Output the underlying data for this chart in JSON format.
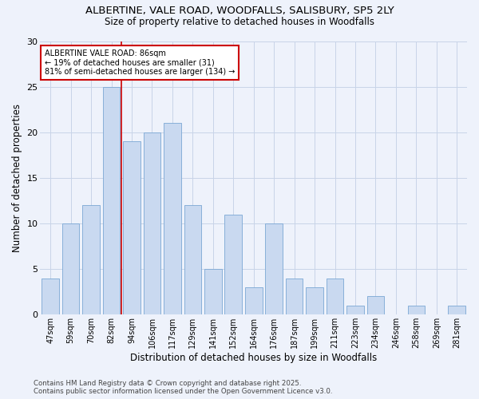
{
  "title_line1": "ALBERTINE, VALE ROAD, WOODFALLS, SALISBURY, SP5 2LY",
  "title_line2": "Size of property relative to detached houses in Woodfalls",
  "xlabel": "Distribution of detached houses by size in Woodfalls",
  "ylabel": "Number of detached properties",
  "categories": [
    "47sqm",
    "59sqm",
    "70sqm",
    "82sqm",
    "94sqm",
    "106sqm",
    "117sqm",
    "129sqm",
    "141sqm",
    "152sqm",
    "164sqm",
    "176sqm",
    "187sqm",
    "199sqm",
    "211sqm",
    "223sqm",
    "234sqm",
    "246sqm",
    "258sqm",
    "269sqm",
    "281sqm"
  ],
  "values": [
    4,
    10,
    12,
    25,
    19,
    20,
    21,
    12,
    5,
    11,
    3,
    10,
    4,
    3,
    4,
    1,
    2,
    0,
    1,
    0,
    1
  ],
  "bar_color": "#c9d9f0",
  "bar_edge_color": "#7ba7d4",
  "vline_x": 3.5,
  "vline_color": "#cc0000",
  "annotation_box_color": "#ffffff",
  "annotation_box_edge": "#cc0000",
  "marker_label": "ALBERTINE VALE ROAD: 86sqm",
  "marker_note1": "← 19% of detached houses are smaller (31)",
  "marker_note2": "81% of semi-detached houses are larger (134) →",
  "grid_color": "#c8d4e8",
  "ylim": [
    0,
    30
  ],
  "yticks": [
    0,
    5,
    10,
    15,
    20,
    25,
    30
  ],
  "footer1": "Contains HM Land Registry data © Crown copyright and database right 2025.",
  "footer2": "Contains public sector information licensed under the Open Government Licence v3.0.",
  "bg_color": "#eef2fb",
  "plot_bg_color": "#eef2fb"
}
